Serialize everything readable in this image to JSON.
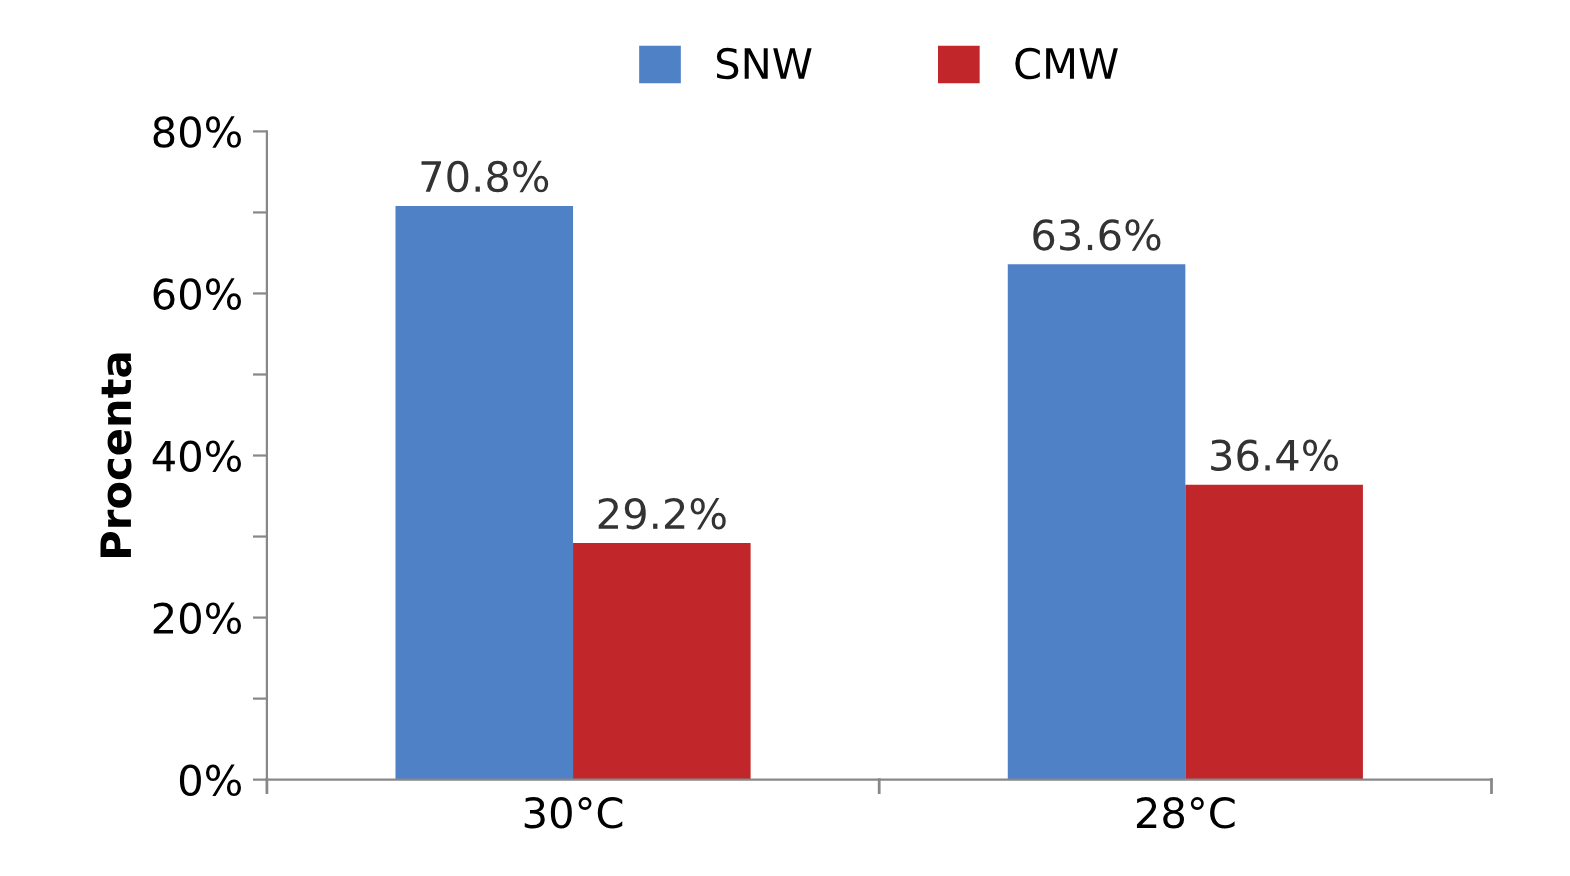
{
  "chart_data": {
    "type": "bar",
    "ylabel": "Procenta",
    "categories": [
      "30°C",
      "28°C"
    ],
    "series": [
      {
        "name": "SNW",
        "color": "#4f81c7",
        "values": [
          70.8,
          63.6
        ],
        "value_labels": [
          "70.8%",
          "63.6%"
        ]
      },
      {
        "name": "CMW",
        "color": "#c0262a",
        "values": [
          29.2,
          36.4
        ],
        "value_labels": [
          "29.2%",
          "36.4%"
        ]
      }
    ],
    "ylim": [
      0,
      80
    ],
    "yticks": [
      {
        "value": 0,
        "label": "0%"
      },
      {
        "value": 10,
        "label": null
      },
      {
        "value": 20,
        "label": "20%"
      },
      {
        "value": 30,
        "label": null
      },
      {
        "value": 40,
        "label": "40%"
      },
      {
        "value": 50,
        "label": null
      },
      {
        "value": 60,
        "label": "60%"
      },
      {
        "value": 70,
        "label": null
      },
      {
        "value": 80,
        "label": "80%"
      }
    ],
    "grid": false,
    "legend": "top"
  }
}
